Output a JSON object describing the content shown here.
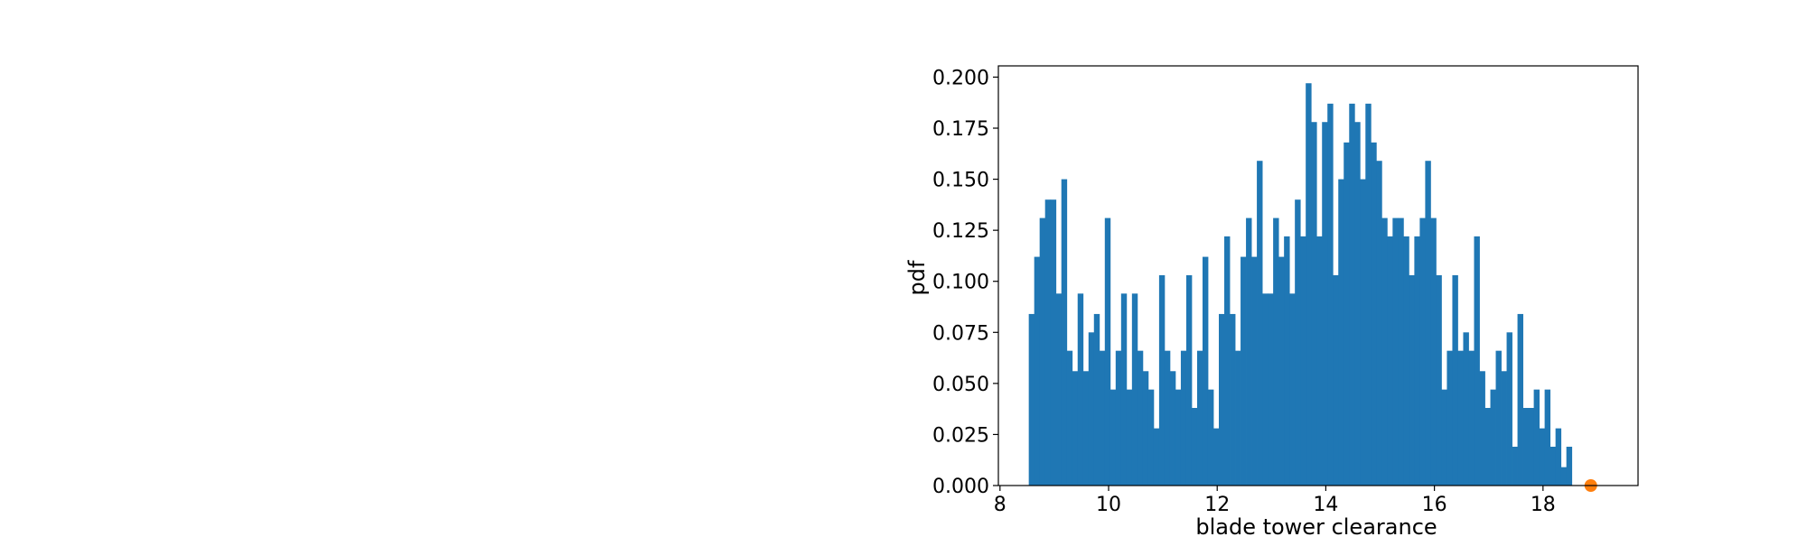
{
  "chart_data": {
    "type": "histogram",
    "xlabel": "blade tower clearance",
    "ylabel": "pdf",
    "xlim": [
      7.97,
      19.75
    ],
    "ylim": [
      0,
      0.2055
    ],
    "x_ticks": [
      "8",
      "10",
      "12",
      "14",
      "16",
      "18"
    ],
    "x_tick_values": [
      8,
      10,
      12,
      14,
      16,
      18
    ],
    "y_ticks": [
      "0.000",
      "0.025",
      "0.050",
      "0.075",
      "0.100",
      "0.125",
      "0.150",
      "0.175",
      "0.200"
    ],
    "y_tick_values": [
      0,
      0.025,
      0.05,
      0.075,
      0.1,
      0.125,
      0.15,
      0.175,
      0.2
    ],
    "bins": {
      "start": 8.53,
      "width": 0.1,
      "values": [
        0.084,
        0.112,
        0.131,
        0.14,
        0.14,
        0.094,
        0.15,
        0.066,
        0.056,
        0.094,
        0.056,
        0.075,
        0.084,
        0.066,
        0.131,
        0.047,
        0.066,
        0.094,
        0.047,
        0.094,
        0.066,
        0.056,
        0.047,
        0.028,
        0.103,
        0.066,
        0.056,
        0.047,
        0.066,
        0.103,
        0.038,
        0.066,
        0.112,
        0.047,
        0.028,
        0.084,
        0.122,
        0.084,
        0.066,
        0.112,
        0.131,
        0.112,
        0.159,
        0.094,
        0.094,
        0.131,
        0.112,
        0.122,
        0.094,
        0.14,
        0.122,
        0.197,
        0.178,
        0.122,
        0.178,
        0.187,
        0.103,
        0.15,
        0.168,
        0.187,
        0.178,
        0.15,
        0.187,
        0.168,
        0.159,
        0.131,
        0.122,
        0.131,
        0.131,
        0.122,
        0.103,
        0.122,
        0.131,
        0.159,
        0.131,
        0.103,
        0.047,
        0.066,
        0.103,
        0.066,
        0.075,
        0.066,
        0.122,
        0.056,
        0.038,
        0.047,
        0.066,
        0.056,
        0.075,
        0.019,
        0.084,
        0.038,
        0.038,
        0.047,
        0.028,
        0.047,
        0.019,
        0.028,
        0.009,
        0.019
      ],
      "color": "#1f77b4"
    },
    "marker": {
      "x": 18.88,
      "y": 0.0,
      "color": "#ff7f0e"
    },
    "grid": false,
    "legend": "none"
  }
}
